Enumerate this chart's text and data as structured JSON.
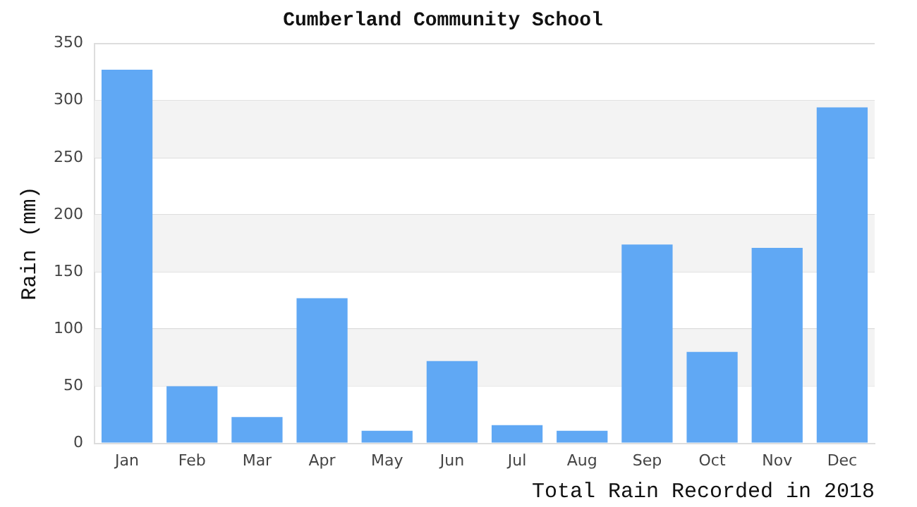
{
  "chart_data": {
    "type": "bar",
    "title": "Cumberland Community School",
    "xlabel": "Total Rain Recorded in 2018",
    "ylabel": "Rain (mm)",
    "categories": [
      "Jan",
      "Feb",
      "Mar",
      "Apr",
      "May",
      "Jun",
      "Jul",
      "Aug",
      "Sep",
      "Oct",
      "Nov",
      "Dec"
    ],
    "values": [
      327,
      50,
      23,
      127,
      11,
      72,
      16,
      11,
      174,
      80,
      171,
      294
    ],
    "color": "#60a8f4",
    "ylim": [
      0,
      350
    ],
    "yticks": [
      0,
      50,
      100,
      150,
      200,
      250,
      300,
      350
    ],
    "grid": "y",
    "legend": false
  }
}
